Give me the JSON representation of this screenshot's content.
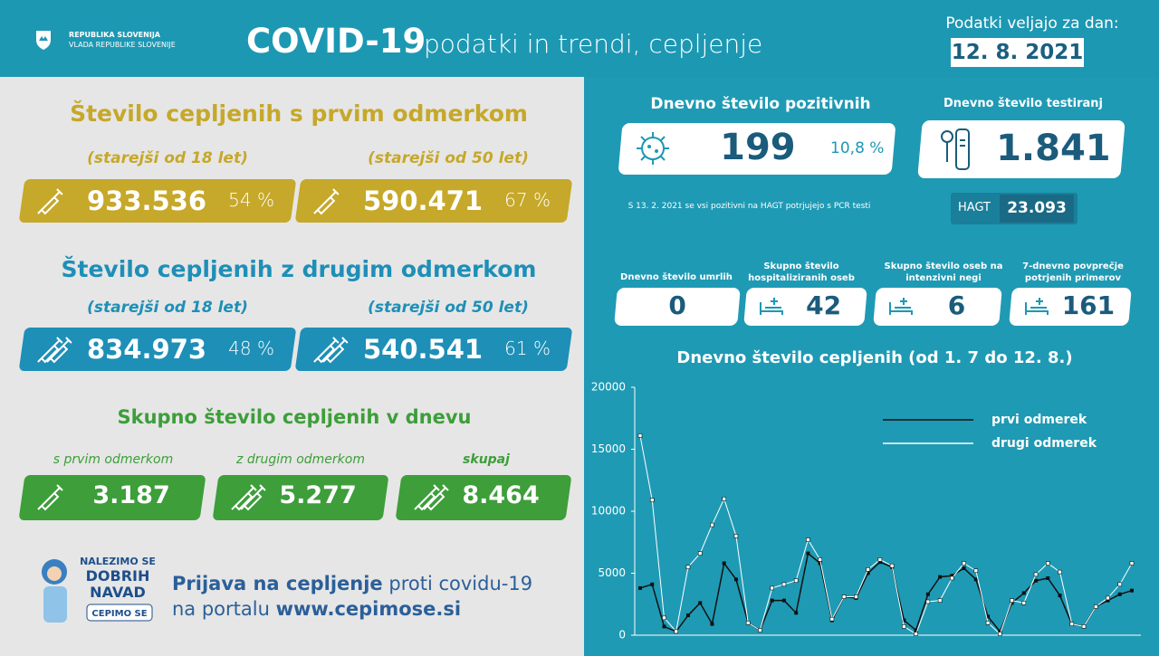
{
  "header": {
    "org_line1": "REPUBLIKA SLOVENIJA",
    "org_line2": "VLADA REPUBLIKE SLOVENIJE",
    "title_bold": "COVID-19",
    "title_rest": "podatki in trendi, cepljenje",
    "date_label": "Podatki veljajo za dan:",
    "date": "12. 8. 2021"
  },
  "first_dose": {
    "title": "Število cepljenih s prvim odmerkom",
    "groups": [
      {
        "label": "(starejši od 18 let)",
        "value": "933.536",
        "percent": "54 %"
      },
      {
        "label": "(starejši od 50 let)",
        "value": "590.471",
        "percent": "67 %"
      }
    ]
  },
  "second_dose": {
    "title": "Število cepljenih z drugim odmerkom",
    "groups": [
      {
        "label": "(starejši od 18 let)",
        "value": "834.973",
        "percent": "48 %"
      },
      {
        "label": "(starejši od 50 let)",
        "value": "540.541",
        "percent": "61 %"
      }
    ]
  },
  "daily": {
    "title": "Skupno število cepljenih v dnevu",
    "items": [
      {
        "label": "s prvim odmerkom",
        "value": "3.187"
      },
      {
        "label": "z drugim odmerkom",
        "value": "5.277"
      },
      {
        "label": "skupaj",
        "value": "8.464"
      }
    ]
  },
  "promo": {
    "badge": [
      "NALEZIMO SE",
      "DOBRIH",
      "NAVAD",
      "CEPIMO SE"
    ],
    "line1_bold": "Prijava na cepljenje",
    "line1_rest": "proti covidu-19",
    "line2_rest": "na portalu",
    "line2_bold": "www.cepimose.si"
  },
  "stats": {
    "positives": {
      "title": "Dnevno število pozitivnih",
      "value": "199",
      "percent": "10,8 %"
    },
    "tests": {
      "title": "Dnevno število testiranj",
      "value": "1.841"
    },
    "note": "S 13. 2. 2021 se vsi pozitivni na HAGT potrjujejo s PCR testi",
    "hagt": {
      "label": "HAGT",
      "value": "23.093"
    },
    "items": [
      {
        "label": "Dnevno število umrlih",
        "value": "0"
      },
      {
        "label": "Skupno število hospitaliziranih oseb",
        "value": "42"
      },
      {
        "label": "Skupno število oseb na intenzivni negi",
        "value": "6"
      },
      {
        "label": "7-dnevno povprečje potrjenih primerov",
        "value": "161"
      }
    ]
  },
  "chart_data": {
    "type": "line",
    "title": "Dnevno število cepljenih (od 1. 7 do 12. 8.)",
    "ylim": [
      0,
      20000
    ],
    "yticks": [
      0,
      5000,
      10000,
      15000,
      20000
    ],
    "series": [
      {
        "name": "prvi odmerek",
        "color": "#111111",
        "values": [
          3800,
          4100,
          700,
          300,
          1600,
          2600,
          900,
          5800,
          4500,
          1000,
          400,
          2800,
          2800,
          1800,
          6600,
          5800,
          1200,
          3100,
          3000,
          5000,
          5900,
          5500,
          1200,
          400,
          3300,
          4700,
          4800,
          5400,
          4500,
          1500,
          300,
          2600,
          3400,
          4400,
          4600,
          3200,
          900,
          700,
          2300,
          2800,
          3300,
          3600
        ]
      },
      {
        "name": "drugi odmerek",
        "color": "#ffffff",
        "values": [
          16100,
          10900,
          1400,
          300,
          5500,
          6600,
          8900,
          11000,
          8000,
          1000,
          400,
          3800,
          4100,
          4400,
          7700,
          6100,
          1300,
          3100,
          3100,
          5300,
          6100,
          5600,
          700,
          100,
          2700,
          2800,
          4600,
          5800,
          5200,
          1000,
          100,
          2800,
          2600,
          4900,
          5800,
          5100,
          900,
          700,
          2300,
          3000,
          4100,
          5800
        ]
      }
    ]
  }
}
